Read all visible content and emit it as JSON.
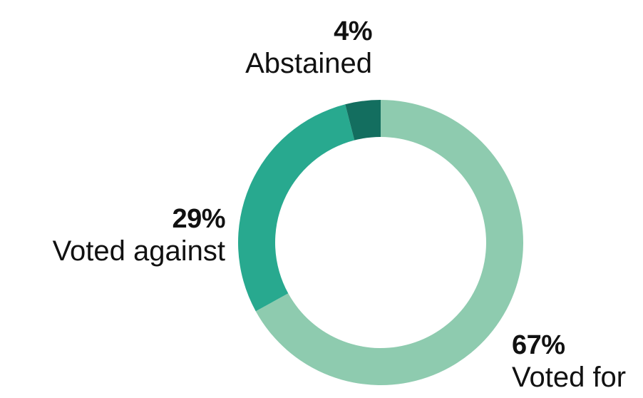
{
  "chart_data": {
    "type": "pie",
    "variant": "donut",
    "start": "top",
    "direction": "clockwise",
    "slices": [
      {
        "label": "Voted for",
        "percent_label": "67%",
        "value": 67,
        "color": "#8ecbaf"
      },
      {
        "label": "Voted against",
        "percent_label": "29%",
        "value": 29,
        "color": "#28a98f"
      },
      {
        "label": "Abstained",
        "percent_label": "4%",
        "value": 4,
        "color": "#136e5f"
      }
    ]
  }
}
